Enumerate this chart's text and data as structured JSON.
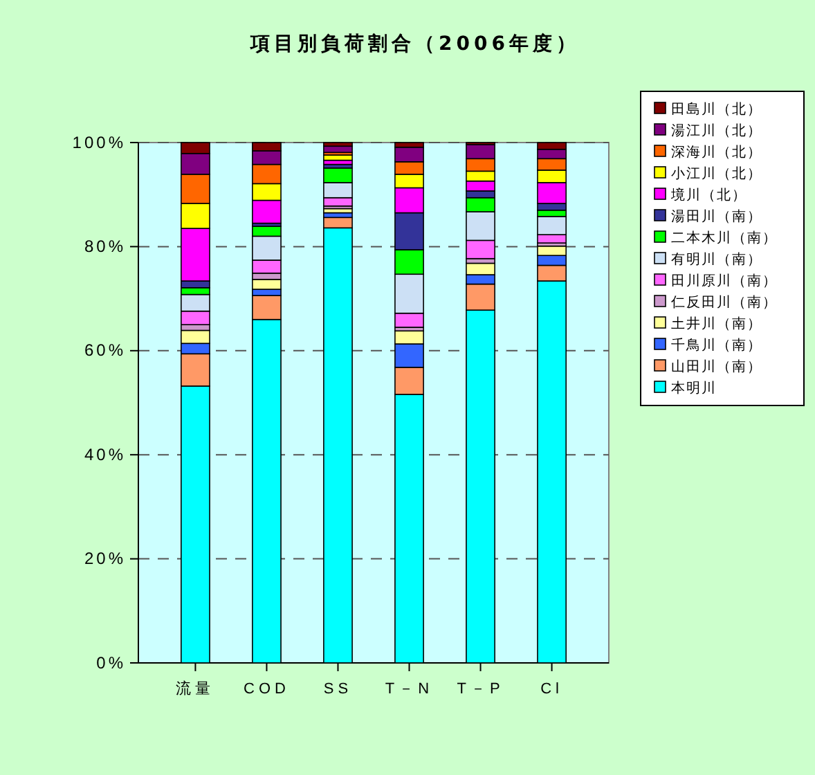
{
  "chart_data": {
    "type": "bar",
    "stacked": true,
    "title": "項目別負荷割合（2006年度）",
    "categories": [
      "流量",
      "COD",
      "SS",
      "T－N",
      "T－P",
      "Cl"
    ],
    "ylim": [
      0,
      100
    ],
    "yticks": [
      {
        "value": 0,
        "label": "0%"
      },
      {
        "value": 20,
        "label": "20%"
      },
      {
        "value": 40,
        "label": "40%"
      },
      {
        "value": 60,
        "label": "60%"
      },
      {
        "value": 80,
        "label": "80%"
      },
      {
        "value": 100,
        "label": "100%"
      }
    ],
    "grid": "y",
    "legend": "right",
    "series": [
      {
        "name": "本明川",
        "color": "#00ffff",
        "values": [
          53.2,
          66.0,
          83.6,
          51.6,
          67.8,
          73.4
        ]
      },
      {
        "name": "山田川（南）",
        "color": "#ff9966",
        "values": [
          6.2,
          4.6,
          2.0,
          5.2,
          5.0,
          3.0
        ]
      },
      {
        "name": "千鳥川（南）",
        "color": "#3366ff",
        "values": [
          2.0,
          1.2,
          0.9,
          4.5,
          1.8,
          1.9
        ]
      },
      {
        "name": "土井川（南）",
        "color": "#ffff99",
        "values": [
          2.5,
          1.9,
          0.8,
          2.5,
          2.2,
          1.8
        ]
      },
      {
        "name": "仁反田川（南）",
        "color": "#cc99cc",
        "values": [
          1.1,
          1.2,
          0.5,
          0.7,
          0.9,
          0.6
        ]
      },
      {
        "name": "田川原川（南）",
        "color": "#ff66ff",
        "values": [
          2.6,
          2.5,
          1.6,
          2.7,
          3.5,
          1.6
        ]
      },
      {
        "name": "有明川（南）",
        "color": "#cce0f5",
        "values": [
          3.2,
          4.6,
          2.9,
          7.5,
          5.5,
          3.5
        ]
      },
      {
        "name": "二本木川（南）",
        "color": "#00ff00",
        "values": [
          1.3,
          1.9,
          2.8,
          4.7,
          2.7,
          1.2
        ]
      },
      {
        "name": "湯田川（南）",
        "color": "#333399",
        "values": [
          1.3,
          0.6,
          0.7,
          7.1,
          1.3,
          1.3
        ]
      },
      {
        "name": "境川（北）",
        "color": "#ff00ff",
        "values": [
          10.1,
          4.4,
          0.8,
          4.8,
          1.9,
          4.0
        ]
      },
      {
        "name": "小江川（北）",
        "color": "#ffff00",
        "values": [
          4.8,
          3.2,
          1.0,
          2.6,
          1.9,
          2.4
        ]
      },
      {
        "name": "深海川（北）",
        "color": "#ff6600",
        "values": [
          5.6,
          3.7,
          0.5,
          2.4,
          2.4,
          2.2
        ]
      },
      {
        "name": "湯江川（北）",
        "color": "#800080",
        "values": [
          4.0,
          2.6,
          1.2,
          2.8,
          2.7,
          1.8
        ]
      },
      {
        "name": "田島川（北）",
        "color": "#800000",
        "values": [
          2.1,
          1.6,
          0.7,
          0.9,
          0.4,
          1.3
        ]
      }
    ]
  }
}
